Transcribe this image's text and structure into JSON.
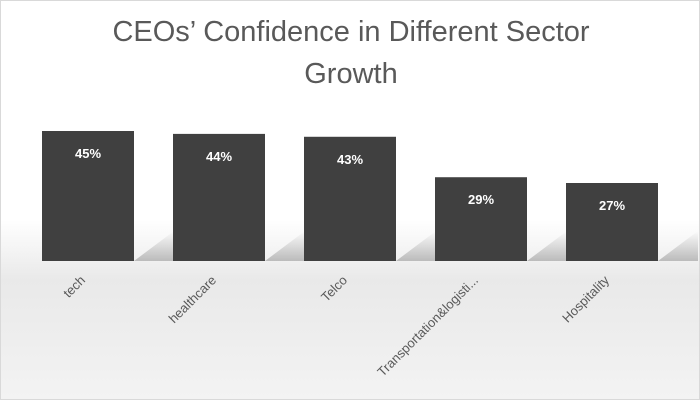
{
  "chart_data": {
    "type": "bar",
    "title": "CEOs’ Confidence in Different Sector Growth",
    "title_lines": [
      "CEOs’ Confidence in Different Sector",
      "Growth"
    ],
    "categories": [
      "tech",
      "healthcare",
      "Telco",
      "Transportation&logisti...",
      "Hospitality"
    ],
    "values": [
      45,
      44,
      43,
      29,
      27
    ],
    "data_labels": [
      "45%",
      "44%",
      "43%",
      "29%",
      "27%"
    ],
    "xlabel": "",
    "ylabel": "",
    "ylim": [
      0,
      45
    ],
    "grid": false,
    "legend": "none",
    "bar_color": "#404040",
    "label_color": "#ffffff",
    "text_color": "#595959"
  }
}
